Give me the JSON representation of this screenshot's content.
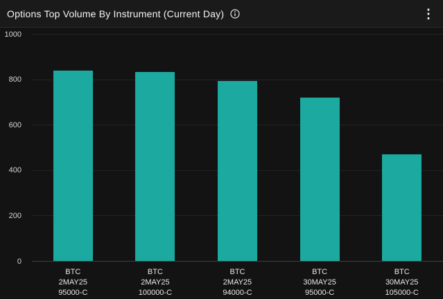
{
  "header": {
    "title": "Options Top Volume By Instrument (Current Day)",
    "info_icon": "info-circle",
    "menu_icon": "kebab-vertical",
    "menu_glyph": "⋮"
  },
  "chart_data": {
    "type": "bar",
    "title": "Options Top Volume By Instrument (Current Day)",
    "categories": [
      "BTC 2MAY25 95000-C",
      "BTC 2MAY25 100000-C",
      "BTC 2MAY25 94000-C",
      "BTC 30MAY25 95000-C",
      "BTC 30MAY25 105000-C"
    ],
    "category_label_lines": [
      [
        "BTC",
        "2MAY25",
        "95000-C"
      ],
      [
        "BTC",
        "2MAY25",
        "100000-C"
      ],
      [
        "BTC",
        "2MAY25",
        "94000-C"
      ],
      [
        "BTC",
        "30MAY25",
        "95000-C"
      ],
      [
        "BTC",
        "30MAY25",
        "105000-C"
      ]
    ],
    "values": [
      840,
      835,
      795,
      720,
      470
    ],
    "yticks": [
      0,
      200,
      400,
      600,
      800,
      1000
    ],
    "ylim": [
      0,
      1000
    ],
    "xlabel": "",
    "ylabel": "",
    "grid": true,
    "legend": false
  },
  "colors": {
    "background": "#131313",
    "header_background": "#1a1a1a",
    "divider": "#2a2a2a",
    "bar": "#1CA9A0",
    "gridline": "#232325",
    "axis_line": "#3e3e40",
    "title_text": "#f5f5f5",
    "tick_text": "#d6d6d6",
    "category_text": "#e8e8e8"
  }
}
